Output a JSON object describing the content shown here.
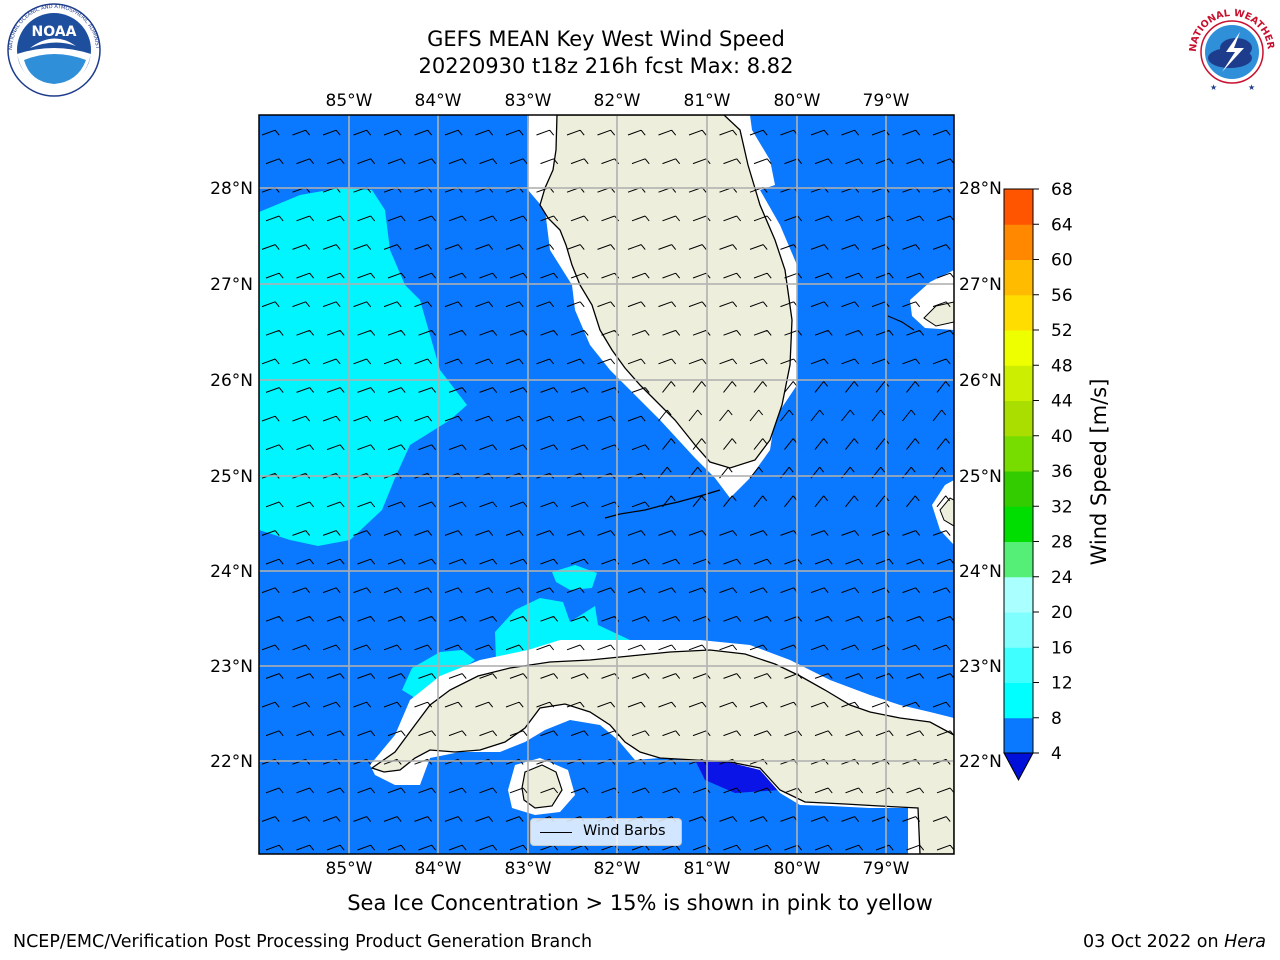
{
  "header": {
    "title_line1": "GEFS MEAN Key West Wind Speed",
    "title_line2": "20220930 t18z 216h fcst   Max: 8.82"
  },
  "logos": {
    "noaa_text": "NOAA",
    "noaa_ring_text": "NATIONAL OCEANIC AND ATMOSPHERIC ADMINISTRATION · U.S. DEPARTMENT OF COMMERCE",
    "nws_text": "NATIONAL WEATHER SERVICE"
  },
  "map": {
    "lon_labels": [
      "85°W",
      "84°W",
      "83°W",
      "82°W",
      "81°W",
      "80°W",
      "79°W"
    ],
    "lat_labels": [
      "28°N",
      "27°N",
      "26°N",
      "25°N",
      "24°N",
      "23°N",
      "22°N"
    ],
    "colors": {
      "speed_4_8": "#0a78ff",
      "speed_8_12": "#00f5ff",
      "speed_below_4": "#0a14e6",
      "land": "#eeeedc",
      "gridline": "#b0b0b0"
    }
  },
  "colorbar": {
    "label": "Wind Speed [m/s]",
    "ticks": [
      "4",
      "8",
      "12",
      "16",
      "20",
      "24",
      "28",
      "32",
      "36",
      "40",
      "44",
      "48",
      "52",
      "56",
      "60",
      "64",
      "68"
    ],
    "colors": [
      "#0a78ff",
      "#00ffff",
      "#40ffff",
      "#80ffff",
      "#aaffff",
      "#55ee77",
      "#00dd00",
      "#33cc00",
      "#77dd00",
      "#aadd00",
      "#ccee00",
      "#eeff00",
      "#ffdd00",
      "#ffbb00",
      "#ff8800",
      "#ff5500",
      "#ff2200",
      "#ff0000"
    ],
    "extend_color": "#0010d8"
  },
  "legend": {
    "wind_barbs_label": "Wind Barbs"
  },
  "note": "Sea Ice Concentration > 15% is shown in pink to yellow",
  "footer": {
    "left": "NCEP/EMC/Verification Post Processing Product Generation Branch",
    "date": "03 Oct 2022 on ",
    "host": "Hera"
  }
}
